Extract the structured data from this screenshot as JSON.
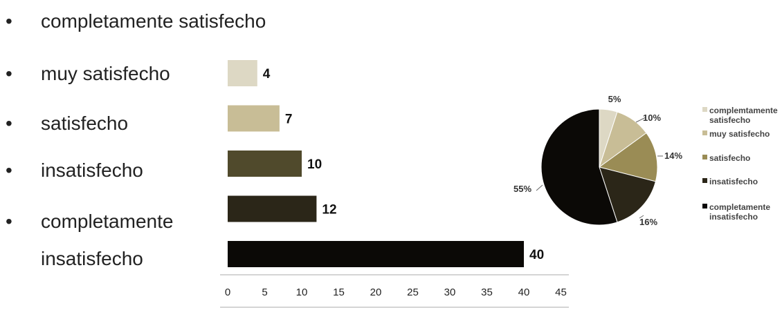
{
  "bullets": [
    "completamente satisfecho",
    "muy satisfecho",
    "satisfecho",
    "insatisfecho",
    "completamente",
    "insatisfecho"
  ],
  "bullet_glyph": "•",
  "colors": {
    "c1": "#ddd8c4",
    "c2": "#c8bd96",
    "c3": "#504a2c",
    "c4": "#2b2618",
    "c5": "#0b0906",
    "pie1": "#ddd8c4",
    "pie2": "#c8bd96",
    "pie3": "#9a8c55",
    "pie4": "#2b2618",
    "pie5": "#0b0906"
  },
  "chart_data": [
    {
      "type": "bar",
      "orientation": "horizontal",
      "values": [
        4,
        7,
        10,
        12,
        40
      ],
      "data_labels": [
        "4",
        "7",
        "10",
        "12",
        "40"
      ],
      "xlim": [
        0,
        45
      ],
      "xticks": [
        "0",
        "5",
        "10",
        "15",
        "20",
        "25",
        "30",
        "35",
        "40",
        "45"
      ],
      "grid": false
    },
    {
      "type": "pie",
      "slices": [
        {
          "label": "complemtamente satisfecho",
          "value": 5,
          "pct_label": "5%"
        },
        {
          "label": "muy satisfecho",
          "value": 10,
          "pct_label": "10%"
        },
        {
          "label": "satisfecho",
          "value": 14,
          "pct_label": "14%"
        },
        {
          "label": "insatisfecho",
          "value": 16,
          "pct_label": "16%"
        },
        {
          "label": "completamente insatisfecho",
          "value": 55,
          "pct_label": "55%"
        }
      ],
      "legend": {
        "position": "right",
        "entries": [
          [
            "complemtamente",
            "satisfecho"
          ],
          [
            "muy satisfecho"
          ],
          [
            "satisfecho"
          ],
          [
            "insatisfecho"
          ],
          [
            "completamente",
            "insatisfecho"
          ]
        ]
      }
    }
  ]
}
